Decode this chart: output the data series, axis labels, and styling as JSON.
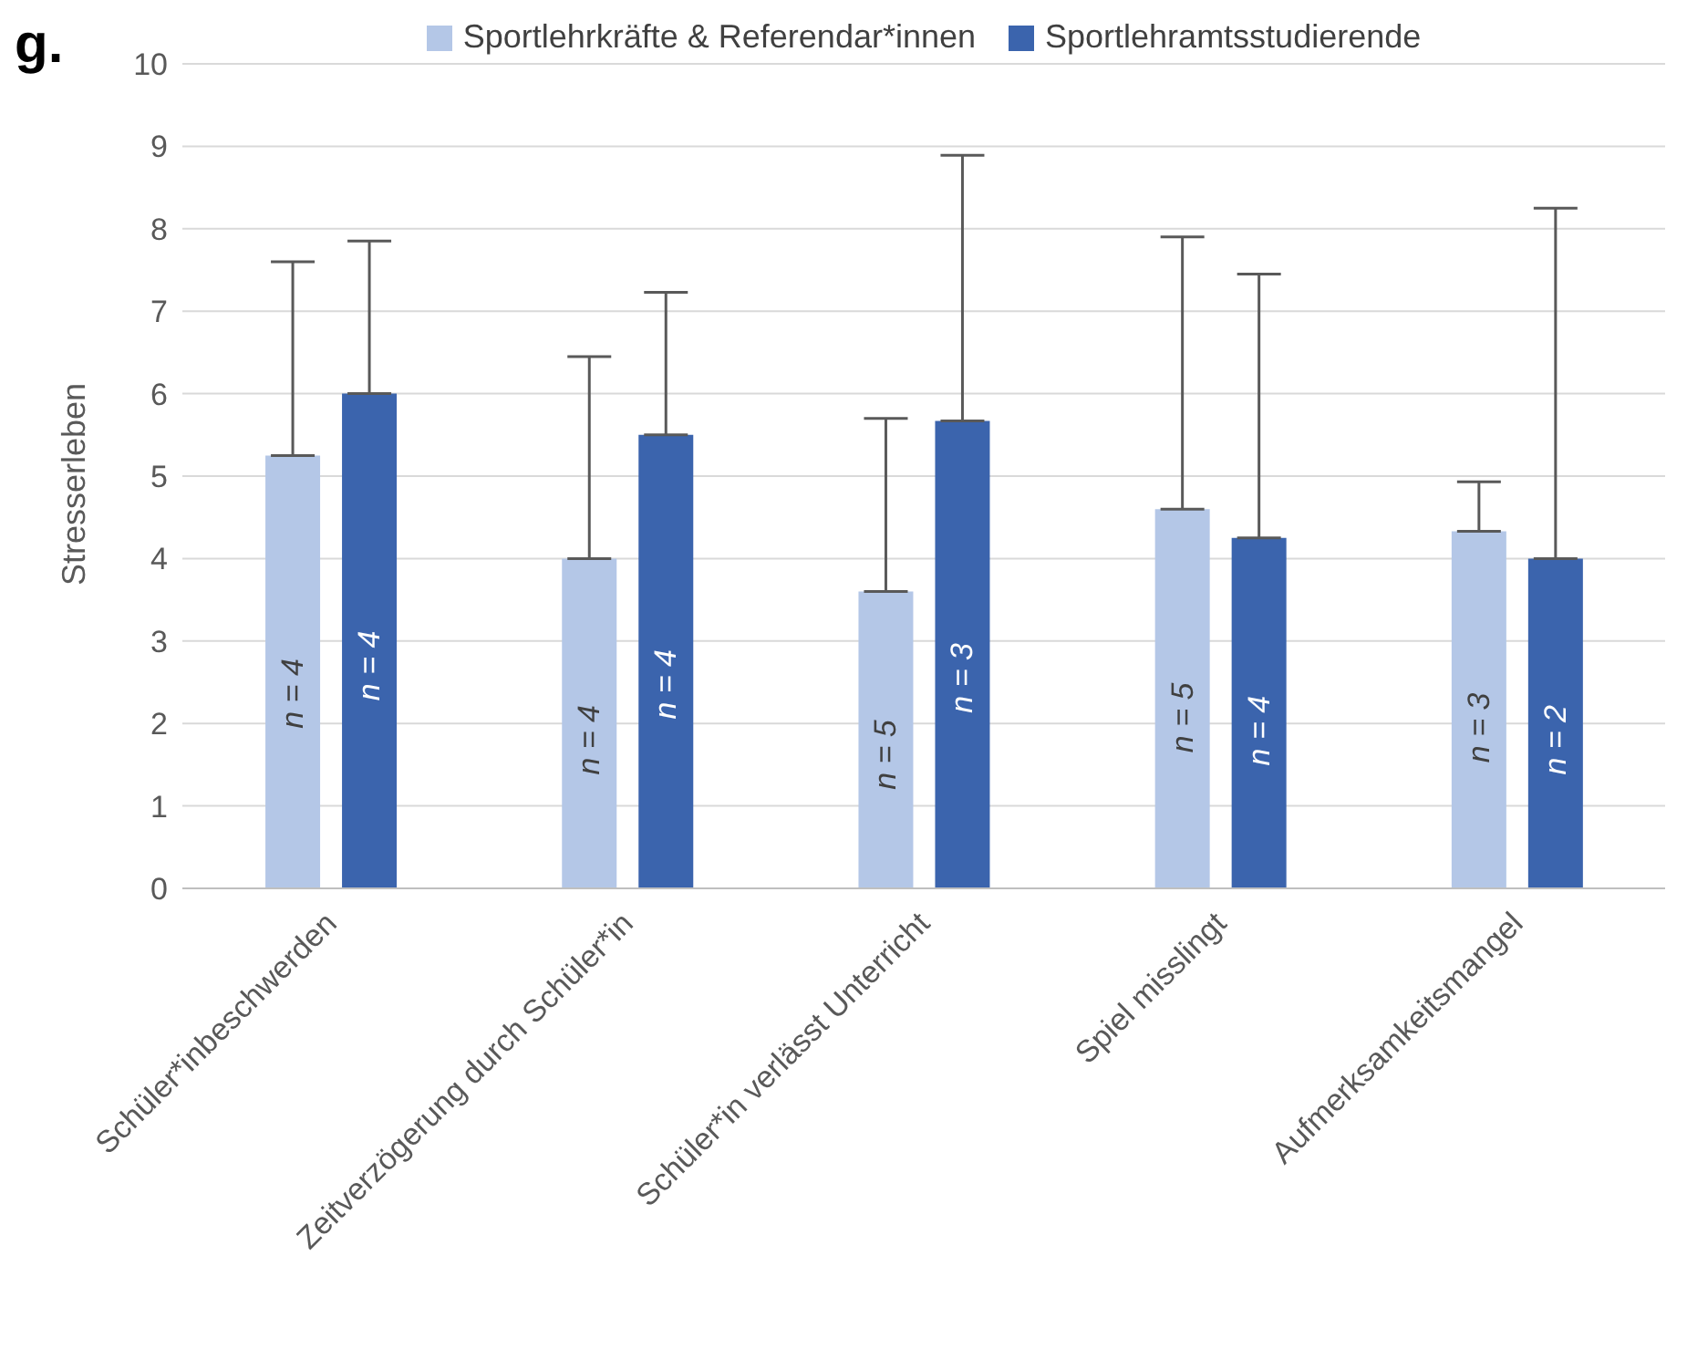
{
  "chart_data": {
    "type": "bar",
    "ylabel": "Stresserleben",
    "categories": [
      "Schüler*inbeschwerden",
      "Zeitverzögerung durch Schüler*in",
      "Schüler*in verlässt Unterricht",
      "Spiel misslingt",
      "Aufmerksamkeitsmangel"
    ],
    "series": [
      {
        "name": "Sportlehrkräfte & Referendar*innen",
        "color": "#b4c7e7",
        "values": [
          5.25,
          4.0,
          3.6,
          4.6,
          4.33
        ],
        "errors": [
          [
            5.25,
            7.6
          ],
          [
            4.0,
            6.45
          ],
          [
            3.6,
            5.7
          ],
          [
            4.6,
            7.9
          ],
          [
            4.33,
            4.93
          ]
        ]
      },
      {
        "name": "Sportlehramtsstudierende",
        "color": "#3b64ad",
        "values": [
          6.0,
          5.5,
          5.67,
          4.25,
          4.0
        ],
        "errors": [
          [
            6.0,
            7.85
          ],
          [
            5.5,
            7.23
          ],
          [
            5.67,
            8.89
          ],
          [
            4.25,
            7.45
          ],
          [
            4.0,
            8.25
          ]
        ]
      }
    ],
    "ylim": [
      0,
      10
    ],
    "yticks": [
      0,
      1,
      2,
      3,
      4,
      5,
      6,
      7,
      8,
      9,
      10
    ],
    "grid": "y",
    "legend": "top",
    "annotations": [
      "g.",
      "n = 4",
      "n = 4",
      "n = 4",
      "n = 4",
      "n = 5",
      "n = 3",
      "n = 5",
      "n = 4",
      "n = 3",
      "n = 2"
    ]
  }
}
